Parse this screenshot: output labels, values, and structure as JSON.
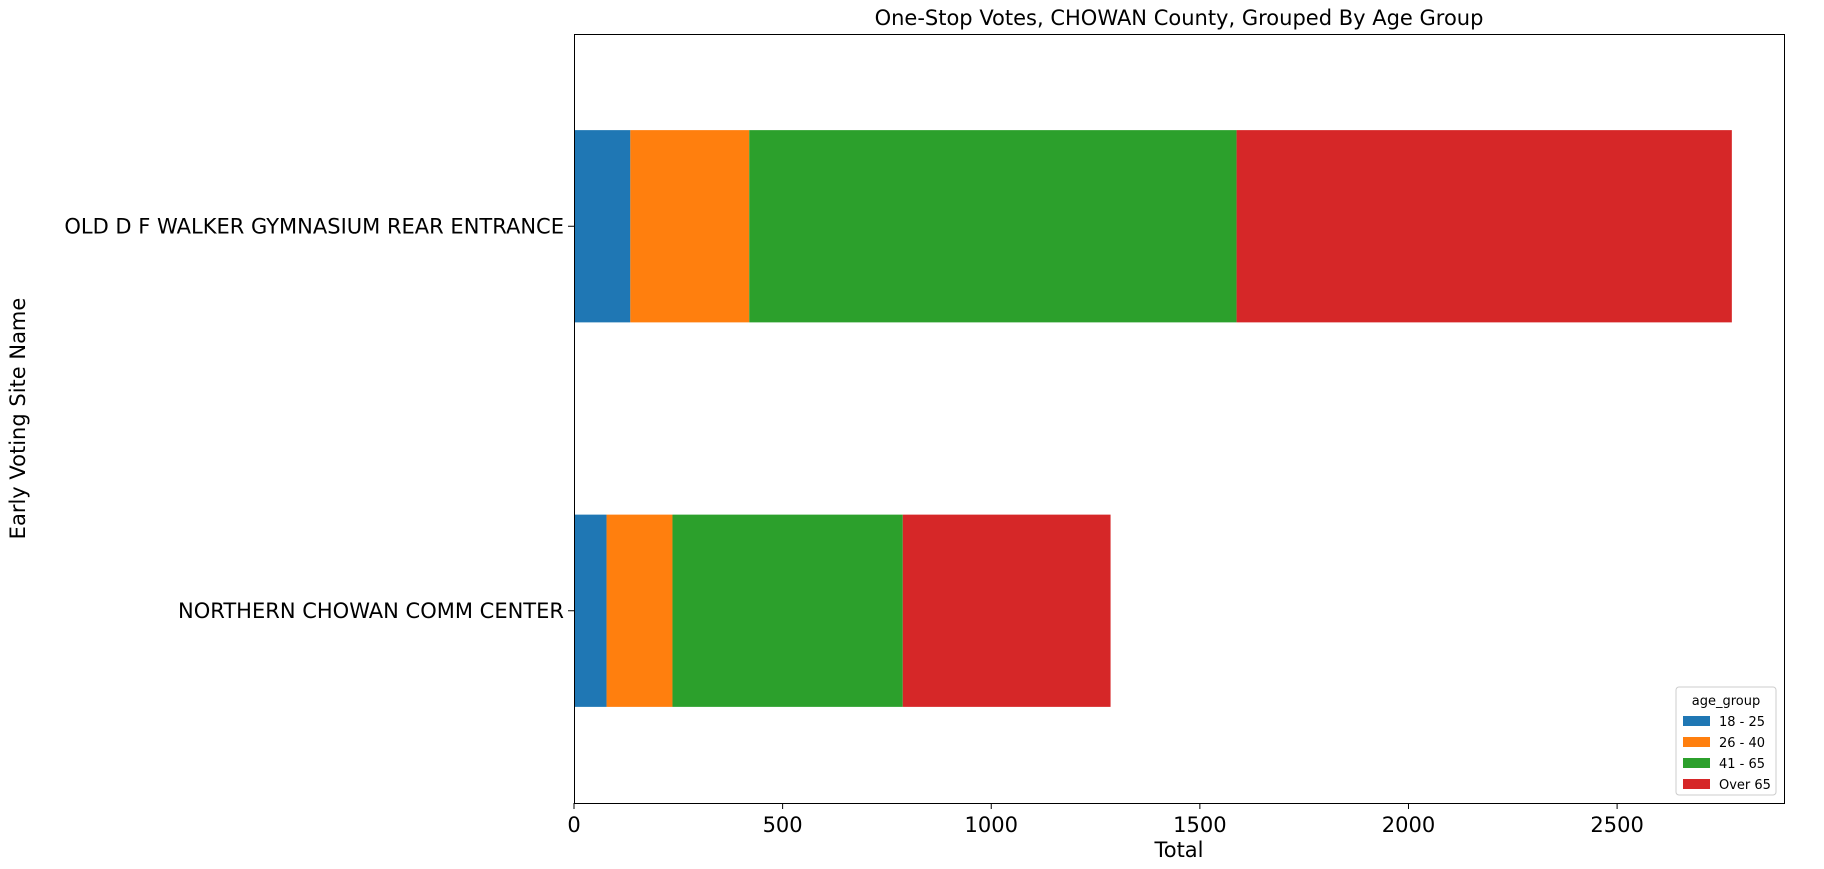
{
  "chart_data": {
    "type": "bar",
    "orientation": "horizontal",
    "stacked": true,
    "title": "One-Stop Votes, CHOWAN County, Grouped By Age Group",
    "xlabel": "Total",
    "ylabel": "Early Voting Site Name",
    "categories": [
      "OLD D F WALKER GYMNASIUM REAR ENTRANCE",
      "NORTHERN CHOWAN COMM CENTER"
    ],
    "series": [
      {
        "name": "18 - 25",
        "color": "#1f77b4",
        "values": [
          135,
          78
        ]
      },
      {
        "name": "26 - 40",
        "color": "#ff7f0e",
        "values": [
          285,
          158
        ]
      },
      {
        "name": "41 - 65",
        "color": "#2ca02c",
        "values": [
          1168,
          552
        ]
      },
      {
        "name": "Over 65",
        "color": "#d62728",
        "values": [
          1187,
          498
        ]
      }
    ],
    "xlim": [
      0,
      2900
    ],
    "xticks": [
      0,
      500,
      1000,
      1500,
      2000,
      2500
    ],
    "grid": false,
    "legend": {
      "title": "age_group",
      "placement": "lower-right"
    }
  }
}
